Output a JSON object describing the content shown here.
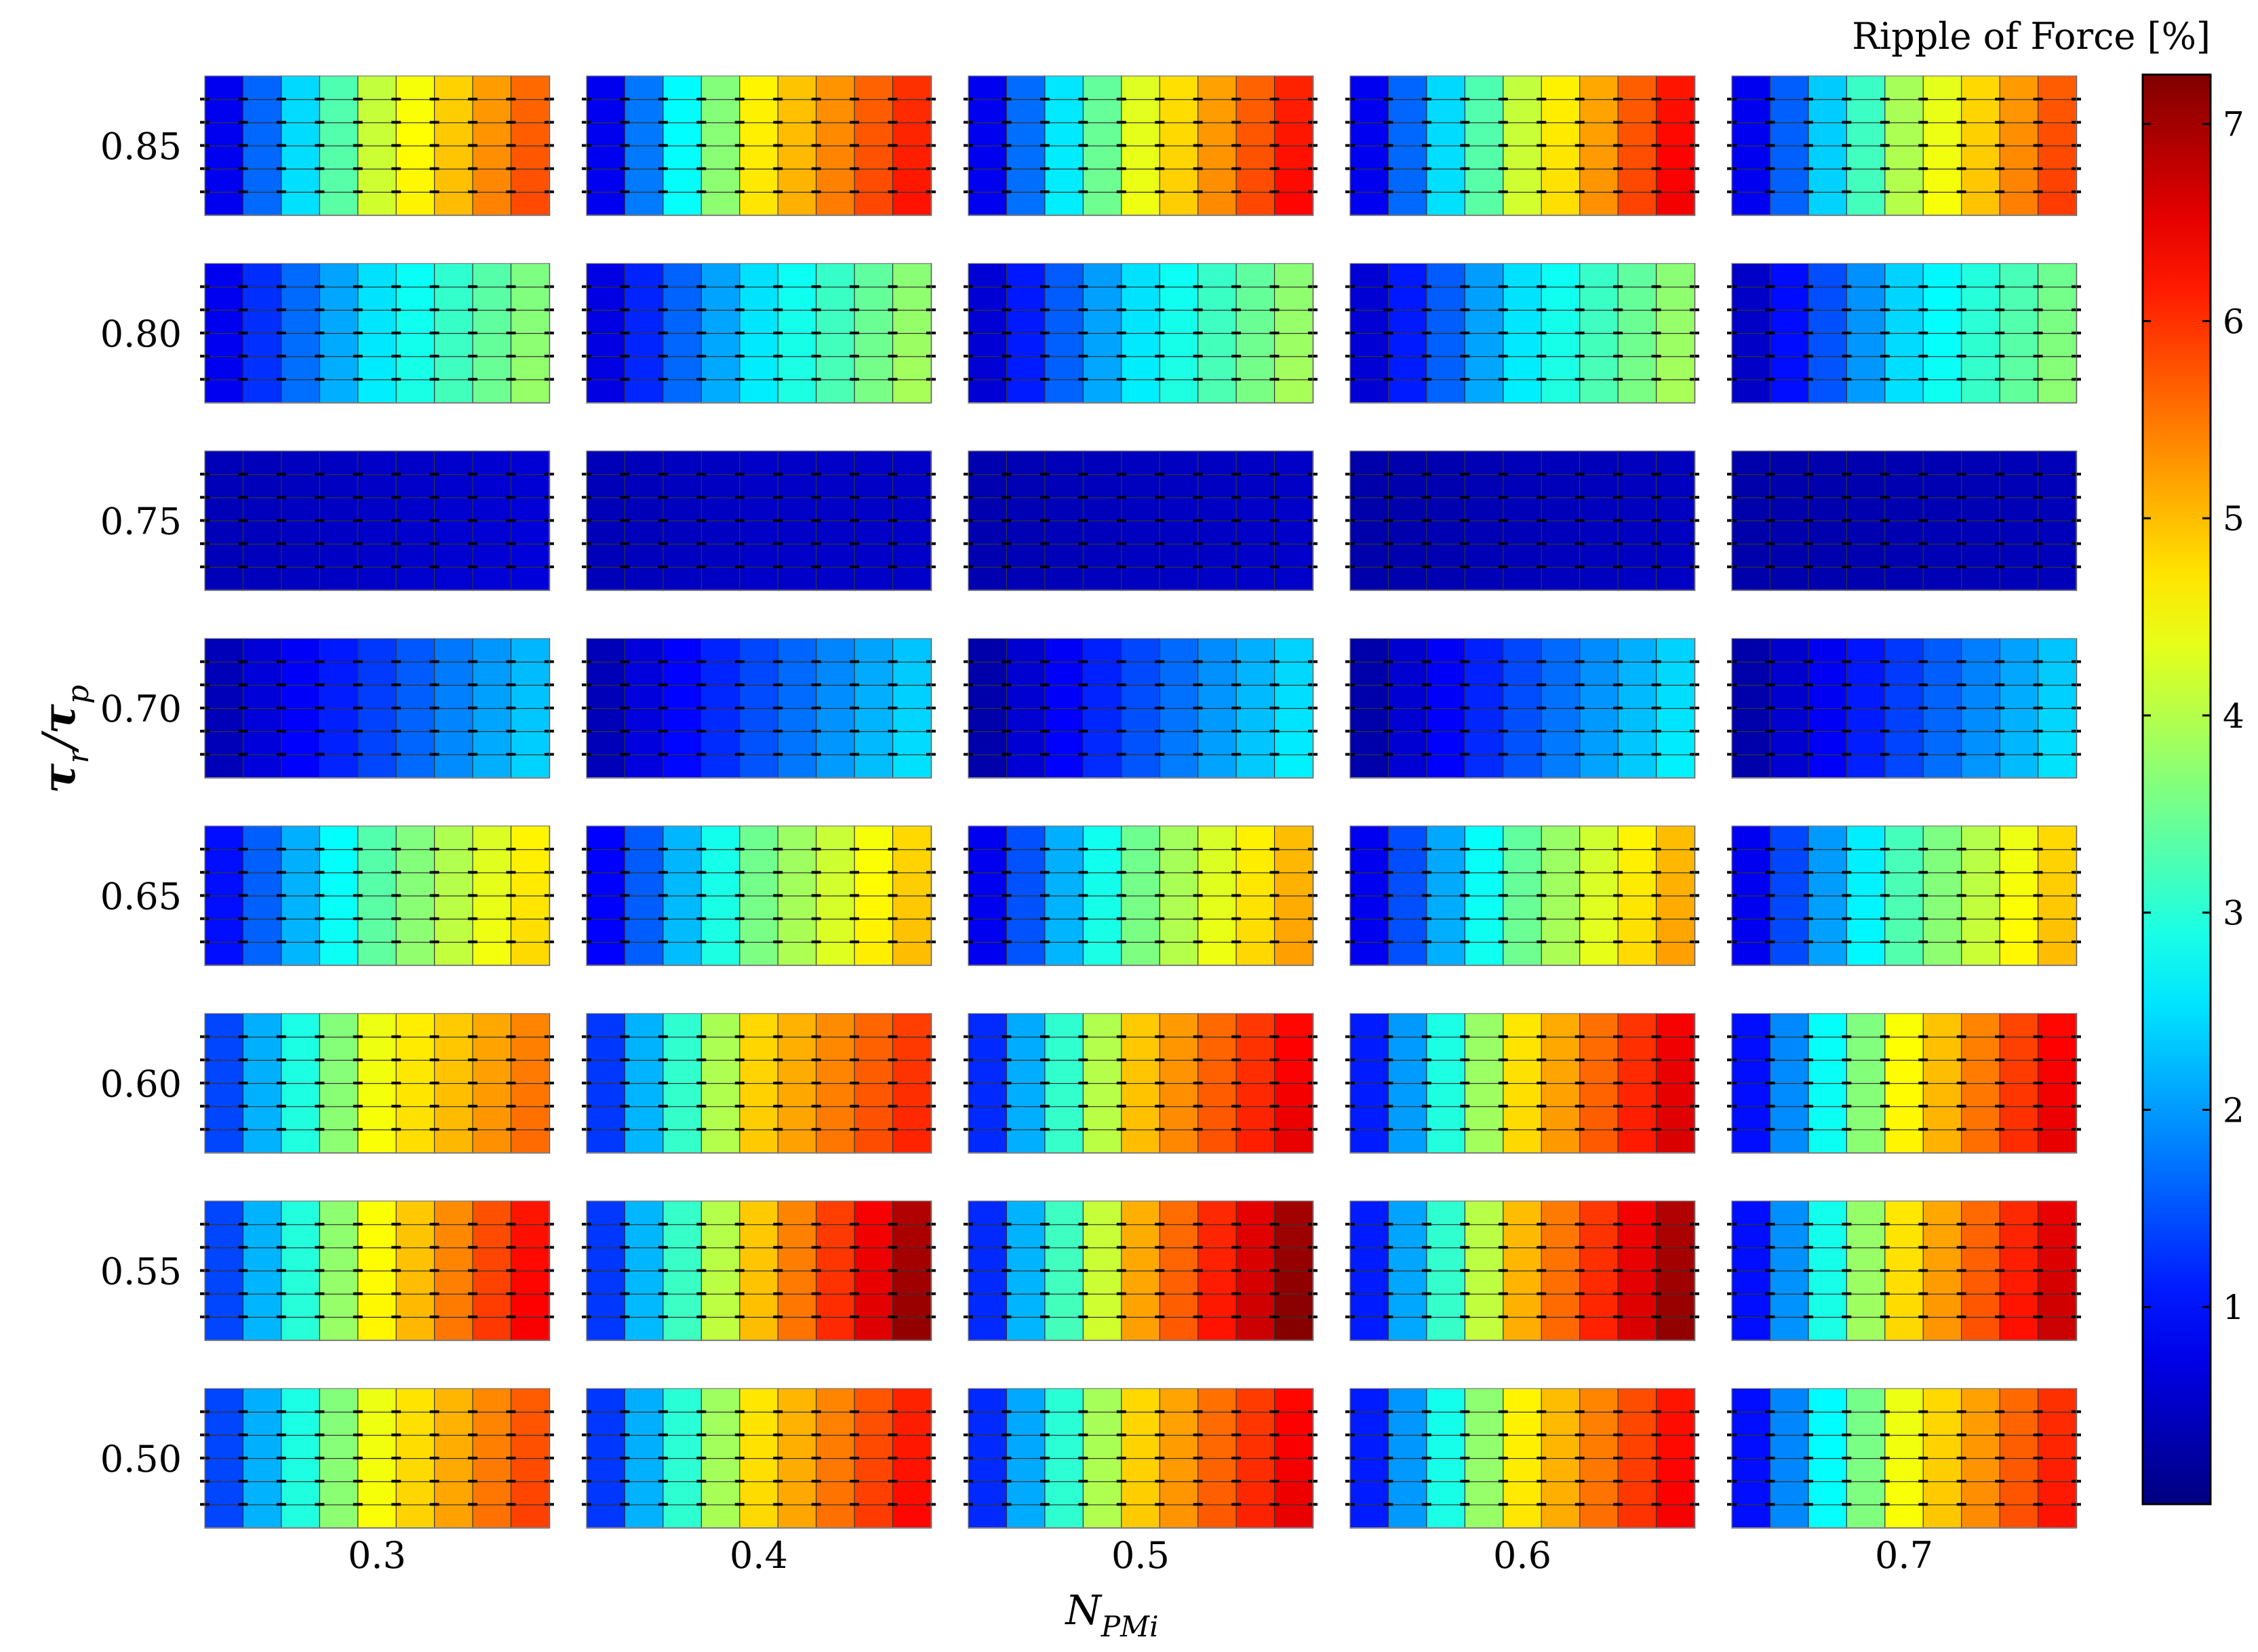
{
  "chart_data": {
    "type": "heatmap",
    "xlabel": "N",
    "xlabel_sub": "PMi",
    "ylabel_main": "τ",
    "ylabel_sub1": "r",
    "ylabel_slash": "/",
    "ylabel_main2": "τ",
    "ylabel_sub2": "p",
    "colorbar_title": "Ripple of Force [%]",
    "colorbar_ticks": [
      1,
      2,
      3,
      4,
      5,
      6,
      7
    ],
    "colorbar_range": [
      0,
      7.25
    ],
    "colormap": "jet",
    "x_groups": [
      "0.3",
      "0.4",
      "0.5",
      "0.6",
      "0.7"
    ],
    "y_groups": [
      "0.85",
      "0.80",
      "0.75",
      "0.70",
      "0.65",
      "0.60",
      "0.55",
      "0.50"
    ],
    "cells_per_panel": {
      "cols": 9,
      "rows": 6
    },
    "panel_ranges": {
      "note_rows": "bottom row (row 0) to top row (row 5); left column to right column",
      "0.85": [
        [
          0.8,
          4.1,
          5.6
        ],
        [
          0.8,
          4.6,
          6.0
        ],
        [
          0.8,
          4.3,
          6.1
        ],
        [
          0.8,
          4.1,
          6.2
        ],
        [
          0.8,
          3.9,
          5.7
        ]
      ],
      "0.80": [
        [
          0.8,
          2.5,
          3.6
        ],
        [
          0.7,
          2.5,
          3.7
        ],
        [
          0.6,
          2.5,
          3.7
        ],
        [
          0.6,
          2.5,
          3.7
        ],
        [
          0.5,
          2.4,
          3.5
        ]
      ],
      "0.75": [
        [
          0.4,
          0.5,
          0.6
        ],
        [
          0.4,
          0.5,
          0.5
        ],
        [
          0.35,
          0.45,
          0.5
        ],
        [
          0.3,
          0.4,
          0.45
        ],
        [
          0.3,
          0.35,
          0.4
        ]
      ],
      "0.70": [
        [
          0.4,
          1.3,
          2.2
        ],
        [
          0.4,
          1.4,
          2.3
        ],
        [
          0.3,
          1.4,
          2.4
        ],
        [
          0.3,
          1.4,
          2.4
        ],
        [
          0.3,
          1.3,
          2.3
        ]
      ],
      "0.65": [
        [
          1.0,
          3.3,
          4.6
        ],
        [
          0.9,
          3.5,
          4.8
        ],
        [
          0.8,
          3.5,
          5.0
        ],
        [
          0.8,
          3.4,
          5.0
        ],
        [
          0.8,
          3.2,
          4.8
        ]
      ],
      "0.60": [
        [
          1.4,
          4.4,
          5.4
        ],
        [
          1.3,
          4.8,
          5.9
        ],
        [
          1.2,
          4.9,
          6.3
        ],
        [
          1.1,
          4.7,
          6.4
        ],
        [
          1.0,
          4.5,
          6.3
        ]
      ],
      "0.55": [
        [
          1.4,
          4.5,
          6.2
        ],
        [
          1.3,
          4.9,
          6.9
        ],
        [
          1.2,
          5.1,
          7.0
        ],
        [
          1.1,
          5.0,
          6.9
        ],
        [
          1.0,
          4.7,
          6.5
        ]
      ],
      "0.50": [
        [
          1.4,
          4.4,
          5.7
        ],
        [
          1.3,
          4.7,
          6.1
        ],
        [
          1.2,
          4.8,
          6.3
        ],
        [
          1.1,
          4.6,
          6.2
        ],
        [
          1.0,
          4.4,
          6.0
        ]
      ]
    }
  }
}
